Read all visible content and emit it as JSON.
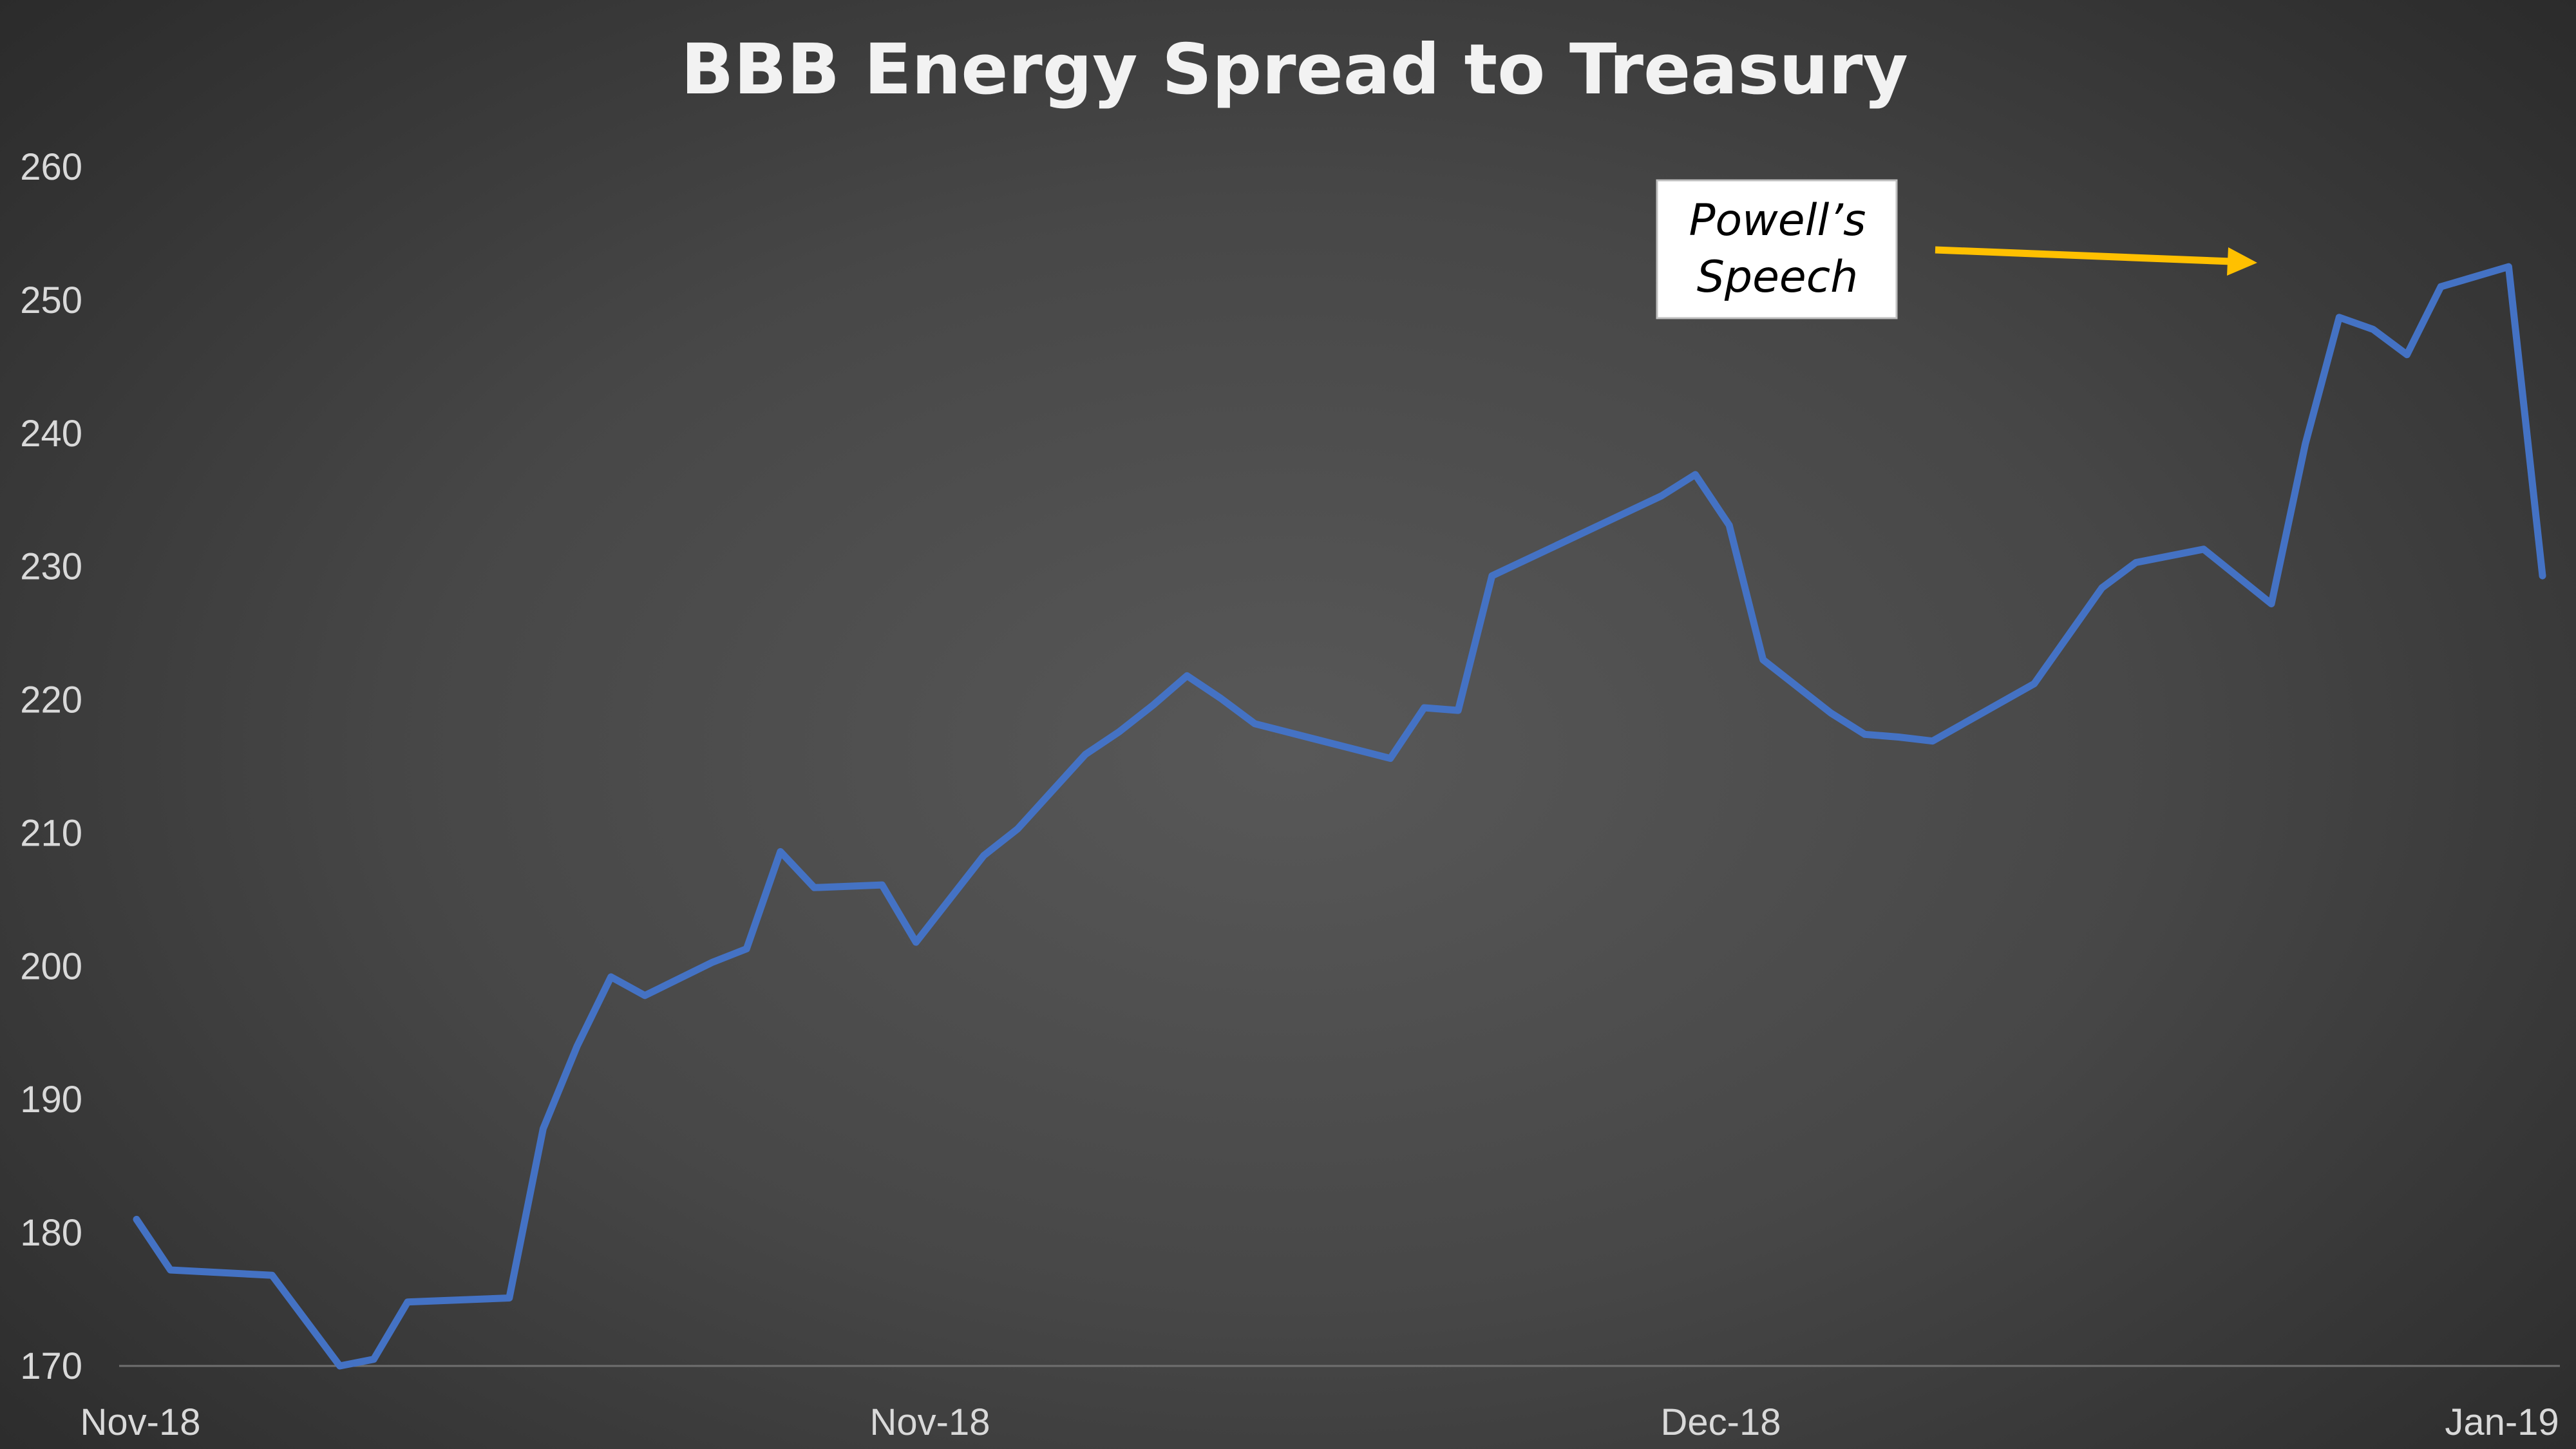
{
  "chart_data": {
    "type": "line",
    "title": "BBB Energy Spread to Treasury",
    "xlabel": "",
    "ylabel": "",
    "ylim": [
      170,
      260
    ],
    "yticks": [
      170,
      180,
      190,
      200,
      210,
      220,
      230,
      240,
      250,
      260
    ],
    "xtick_labels": [
      "Nov-18",
      "Nov-18",
      "Dec-18",
      "Jan-19"
    ],
    "grid": false,
    "series": [
      {
        "color": "#4472C4",
        "x": [
          0,
          1,
          4,
          6,
          7,
          8,
          11,
          12,
          13,
          14,
          15,
          17,
          18,
          19,
          20,
          22,
          23,
          25,
          26,
          28,
          29,
          30,
          31,
          32,
          33,
          37,
          38,
          39,
          40,
          43,
          44,
          45,
          46,
          47,
          48,
          50,
          51,
          52,
          53,
          56,
          58,
          59,
          61,
          63,
          64,
          65,
          66,
          67,
          68,
          70,
          71
        ],
        "values": [
          181,
          177.2,
          176.8,
          170,
          170.5,
          174.8,
          175.1,
          187.8,
          194,
          199.2,
          197.8,
          200.3,
          201.3,
          208.6,
          205.9,
          206.1,
          201.8,
          208.3,
          210.3,
          215.9,
          217.6,
          219.6,
          221.8,
          220.1,
          218.2,
          215.6,
          219.4,
          219.2,
          229.3,
          232.9,
          234.1,
          235.3,
          236.9,
          233.1,
          223,
          219,
          217.4,
          217.2,
          216.9,
          221.2,
          228.4,
          230.3,
          231.3,
          227.2,
          239.2,
          248.7,
          247.8,
          245.9,
          251,
          252.5,
          229.3
        ]
      }
    ],
    "annotation": {
      "line1": "Powell’s",
      "line2": "Speech",
      "arrow_color": "#FFC000"
    }
  }
}
